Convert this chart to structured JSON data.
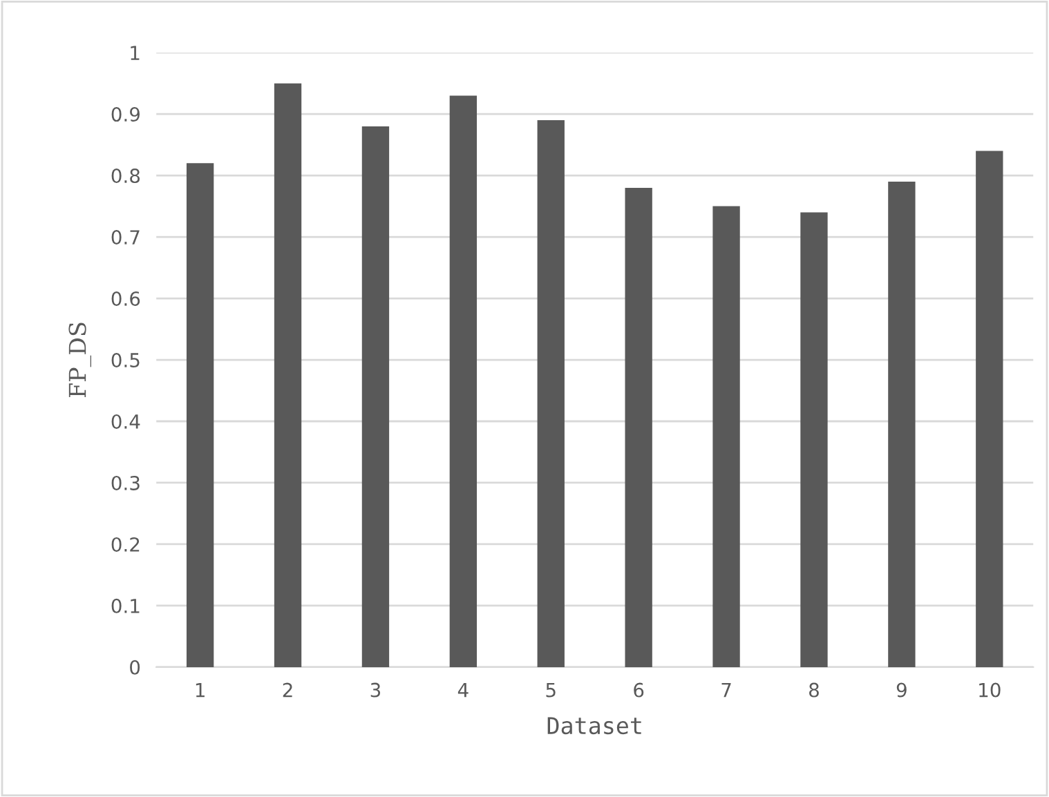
{
  "chart_data": {
    "type": "bar",
    "xlabel": "Dataset",
    "ylabel": "FP_DS",
    "categories": [
      "1",
      "2",
      "3",
      "4",
      "5",
      "6",
      "7",
      "8",
      "9",
      "10"
    ],
    "values": [
      0.82,
      0.95,
      0.88,
      0.93,
      0.89,
      0.78,
      0.75,
      0.74,
      0.79,
      0.84
    ],
    "color": "#595959",
    "ylim": [
      0,
      1
    ],
    "yticks": [
      0,
      0.1,
      0.2,
      0.3,
      0.4,
      0.5,
      0.6,
      0.7,
      0.8,
      0.9,
      1
    ],
    "grid": "y"
  }
}
